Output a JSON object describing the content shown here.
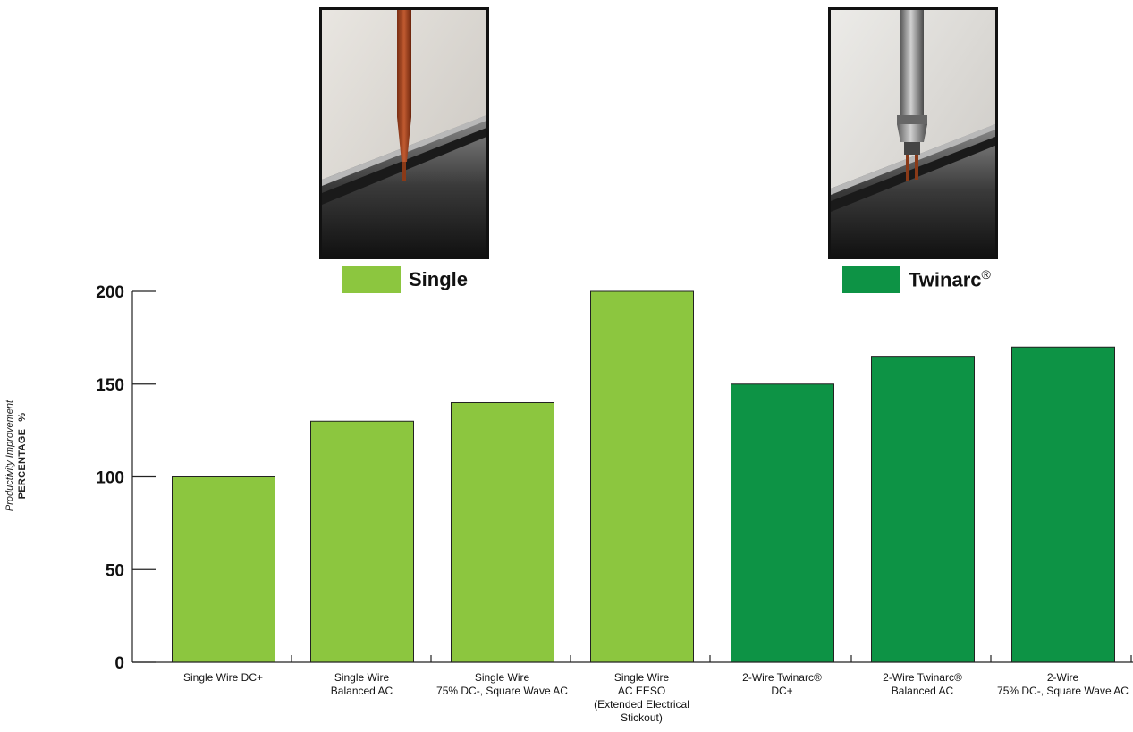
{
  "chart_data": {
    "type": "bar",
    "categories": [
      [
        "Single Wire DC+"
      ],
      [
        "Single Wire",
        "Balanced AC"
      ],
      [
        "Single Wire",
        "75% DC-, Square Wave AC"
      ],
      [
        "Single Wire",
        "AC EESO",
        "(Extended Electrical",
        "Stickout)"
      ],
      [
        "2-Wire Twinarc®",
        "DC+"
      ],
      [
        "2-Wire Twinarc®",
        "Balanced AC"
      ],
      [
        "2-Wire",
        "75% DC-, Square Wave AC"
      ]
    ],
    "series": [
      {
        "name": "Single",
        "color": "#8cc63f",
        "values": [
          100,
          130,
          140,
          200,
          null,
          null,
          null
        ]
      },
      {
        "name": "Twinarc®",
        "color": "#0d9345",
        "values": [
          null,
          null,
          null,
          null,
          150,
          165,
          170
        ]
      }
    ],
    "ylabel_line1": "Productivity Improvement",
    "ylabel_line2": "PERCENTAGE",
    "ylabel_unit": "%",
    "yticks": [
      0,
      50,
      100,
      150,
      200
    ],
    "ylim": [
      0,
      200
    ],
    "grid": false,
    "legend_placement": "top"
  },
  "legend": {
    "single_label": "Single",
    "twinarc_label": "Twinarc",
    "twinarc_mark": "®"
  }
}
